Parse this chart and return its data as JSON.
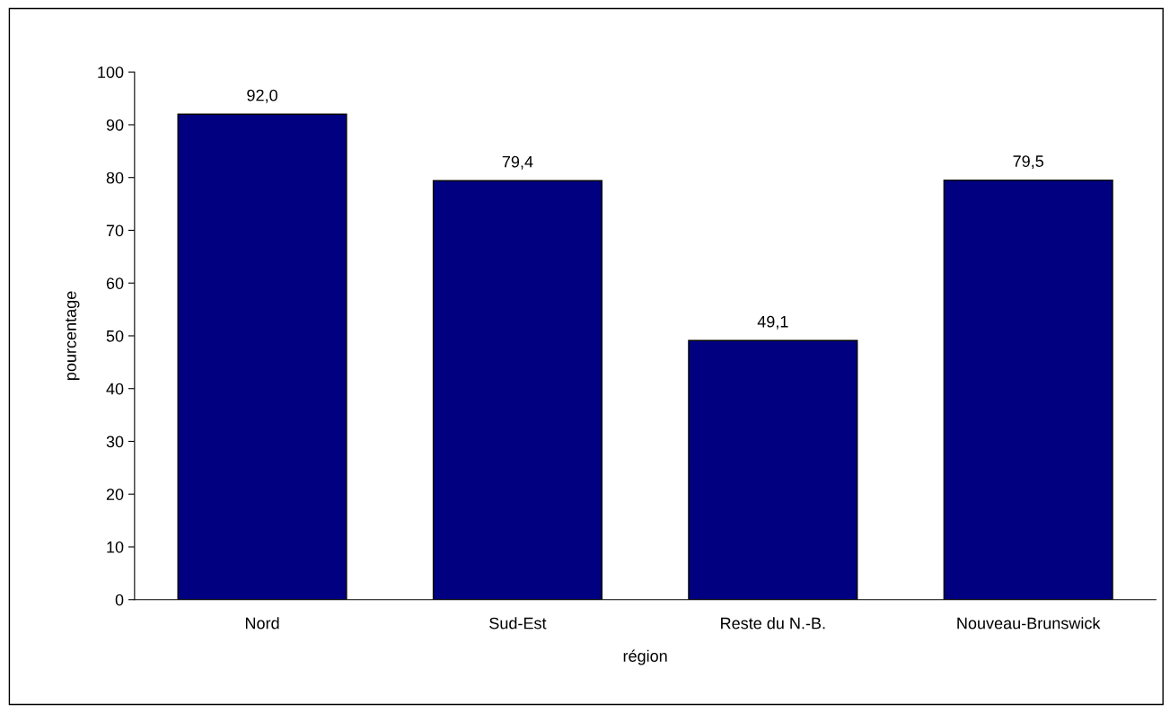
{
  "chart_data": {
    "type": "bar",
    "xlabel": "région",
    "ylabel": "pourcentage",
    "categories": [
      "Nord",
      "Sud-Est",
      "Reste du N.-B.",
      "Nouveau-Brunswick"
    ],
    "values": [
      92.0,
      79.4,
      49.1,
      79.5
    ],
    "value_labels": [
      "92,0",
      "79,4",
      "49,1",
      "79,5"
    ],
    "color": "#000080",
    "ylim": [
      0,
      100
    ],
    "yticks": [
      0,
      10,
      20,
      30,
      40,
      50,
      60,
      70,
      80,
      90,
      100
    ],
    "grid": false
  }
}
